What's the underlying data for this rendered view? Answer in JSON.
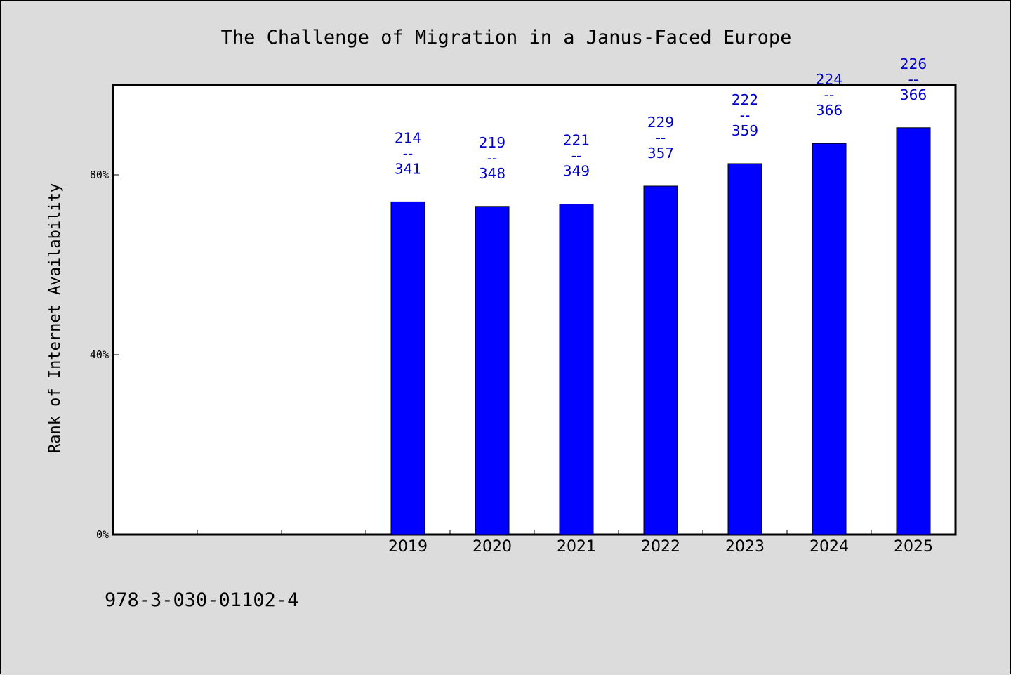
{
  "footer_text": "978-3-030-01102-4",
  "chart_data": {
    "type": "bar",
    "title": "The Challenge of Migration in a Janus-Faced Europe",
    "xlabel": "",
    "ylabel": "Rank of Internet Availability",
    "ylim": [
      0,
      100
    ],
    "yticks": [
      0,
      40,
      80
    ],
    "ytick_labels": [
      "0%",
      "40%",
      "80%"
    ],
    "categories": [
      "",
      "",
      "",
      "2019",
      "2020",
      "2021",
      "2022",
      "2023",
      "2024",
      "2025"
    ],
    "values": [
      null,
      null,
      null,
      74,
      73,
      73.5,
      77.5,
      82.5,
      87,
      90.5
    ],
    "data_labels": [
      null,
      null,
      null,
      [
        "214",
        "--",
        "341"
      ],
      [
        "219",
        "--",
        "348"
      ],
      [
        "221",
        "--",
        "349"
      ],
      [
        "229",
        "--",
        "357"
      ],
      [
        "222",
        "--",
        "359"
      ],
      [
        "224",
        "--",
        "366"
      ],
      [
        "226",
        "--",
        "366"
      ]
    ],
    "bar_color": "#0000ff",
    "label_color": "#0000cc",
    "background": "#dcdcdc",
    "plot_background": "#ffffff",
    "grid": false,
    "legend": "none"
  }
}
